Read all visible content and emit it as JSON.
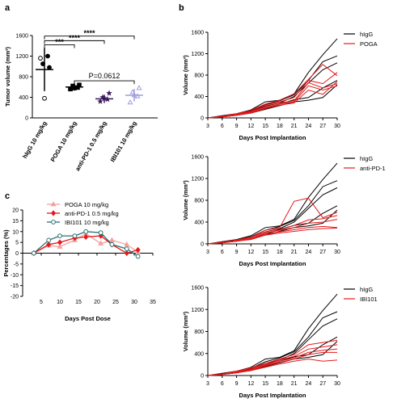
{
  "panel_labels": [
    "a",
    "b",
    "c"
  ],
  "colors": {
    "higg": "#000000",
    "treat": "#e31a1c",
    "poga_c": "#f4a0a0",
    "pd1_c": "#e31a1c",
    "ibi_c": "#2a7070",
    "g1": "#000000",
    "g2": "#000000",
    "g3": "#3a1a5a",
    "g4": "#9e9ee0"
  },
  "chart_data": [
    {
      "id": "a",
      "type": "scatter",
      "ylabel": "Tumor volume (mm³)",
      "ylim": [
        0,
        1600
      ],
      "yticks": [
        0,
        400,
        800,
        1200,
        1600
      ],
      "categories": [
        "hIgG 10 mg/kg",
        "POGA 10 mg/kg",
        "anti-PD-1 0.5 mg/kg",
        "IBI101 10 mg/kg"
      ],
      "groups": [
        {
          "name": "hIgG 10 mg/kg",
          "mean": 940,
          "sd": 420,
          "points": [
            1160,
            1200,
            1050,
            980,
            380
          ],
          "marker": "circle"
        },
        {
          "name": "POGA 10 mg/kg",
          "mean": 600,
          "sd": 70,
          "points": [
            560,
            590,
            620,
            640,
            580
          ],
          "marker": "square"
        },
        {
          "name": "anti-PD-1 0.5 mg/kg",
          "mean": 370,
          "sd": 80,
          "points": [
            320,
            360,
            400,
            480,
            380
          ],
          "marker": "star"
        },
        {
          "name": "IBI101 10 mg/kg",
          "mean": 440,
          "sd": 120,
          "points": [
            300,
            420,
            500,
            580,
            440
          ],
          "marker": "triangle"
        }
      ],
      "significance": [
        {
          "from": 0,
          "to": 1,
          "label": "***",
          "y": 1420
        },
        {
          "from": 0,
          "to": 2,
          "label": "****",
          "y": 1500
        },
        {
          "from": 0,
          "to": 3,
          "label": "****",
          "y": 1590
        },
        {
          "from": 1,
          "to": 3,
          "label": "P=0.0612",
          "y": 720
        }
      ]
    },
    {
      "id": "b1",
      "type": "line",
      "xlabel": "Days Post Implantation",
      "ylabel": "Volume (mm³)",
      "xticks": [
        3,
        6,
        9,
        12,
        15,
        18,
        21,
        24,
        27,
        30
      ],
      "ylim": [
        0,
        1600
      ],
      "yticks": [
        0,
        400,
        800,
        1200,
        1600
      ],
      "legend": [
        "hIgG",
        "POGA"
      ],
      "x": [
        3,
        6,
        9,
        12,
        15,
        18,
        21,
        24,
        27,
        30
      ],
      "series": [
        {
          "group": "hIgG",
          "values": [
            0,
            40,
            80,
            150,
            300,
            330,
            450,
            850,
            1180,
            1480
          ]
        },
        {
          "group": "hIgG",
          "values": [
            0,
            30,
            70,
            130,
            250,
            320,
            430,
            700,
            1050,
            1160
          ]
        },
        {
          "group": "hIgG",
          "values": [
            0,
            30,
            60,
            120,
            220,
            280,
            400,
            650,
            900,
            1030
          ]
        },
        {
          "group": "hIgG",
          "values": [
            0,
            20,
            50,
            100,
            180,
            260,
            340,
            380,
            560,
            700
          ]
        },
        {
          "group": "hIgG",
          "values": [
            0,
            20,
            50,
            90,
            160,
            230,
            300,
            330,
            380,
            620
          ]
        },
        {
          "group": "treat",
          "values": [
            0,
            30,
            80,
            140,
            260,
            330,
            450,
            720,
            1000,
            790
          ]
        },
        {
          "group": "treat",
          "values": [
            0,
            30,
            70,
            120,
            240,
            300,
            380,
            700,
            640,
            850
          ]
        },
        {
          "group": "treat",
          "values": [
            0,
            20,
            60,
            110,
            210,
            280,
            320,
            660,
            560,
            640
          ]
        },
        {
          "group": "treat",
          "values": [
            0,
            20,
            50,
            100,
            190,
            260,
            300,
            600,
            520,
            600
          ]
        },
        {
          "group": "treat",
          "values": [
            0,
            20,
            50,
            90,
            170,
            240,
            280,
            520,
            440,
            680
          ]
        }
      ]
    },
    {
      "id": "b2",
      "type": "line",
      "xlabel": "Days Post Implantation",
      "ylabel": "Volume (mm³)",
      "xticks": [
        3,
        6,
        9,
        12,
        15,
        18,
        21,
        24,
        27,
        30
      ],
      "ylim": [
        0,
        1600
      ],
      "yticks": [
        0,
        400,
        800,
        1200,
        1600
      ],
      "legend": [
        "hIgG",
        "anti-PD-1"
      ],
      "x": [
        3,
        6,
        9,
        12,
        15,
        18,
        21,
        24,
        27,
        30
      ],
      "series": [
        {
          "group": "hIgG",
          "values": [
            0,
            40,
            80,
            150,
            300,
            330,
            450,
            850,
            1180,
            1480
          ]
        },
        {
          "group": "hIgG",
          "values": [
            0,
            30,
            70,
            130,
            250,
            320,
            430,
            700,
            1050,
            1160
          ]
        },
        {
          "group": "hIgG",
          "values": [
            0,
            30,
            60,
            120,
            220,
            280,
            400,
            650,
            900,
            1030
          ]
        },
        {
          "group": "hIgG",
          "values": [
            0,
            20,
            50,
            100,
            180,
            260,
            340,
            380,
            560,
            700
          ]
        },
        {
          "group": "hIgG",
          "values": [
            0,
            20,
            50,
            90,
            160,
            230,
            300,
            330,
            380,
            620
          ]
        },
        {
          "group": "treat",
          "values": [
            0,
            30,
            70,
            120,
            250,
            300,
            780,
            840,
            480,
            580
          ]
        },
        {
          "group": "treat",
          "values": [
            0,
            30,
            70,
            120,
            220,
            270,
            340,
            440,
            460,
            520
          ]
        },
        {
          "group": "treat",
          "values": [
            0,
            20,
            60,
            100,
            200,
            250,
            300,
            380,
            400,
            450
          ]
        },
        {
          "group": "treat",
          "values": [
            0,
            20,
            50,
            90,
            180,
            220,
            260,
            300,
            320,
            300
          ]
        },
        {
          "group": "treat",
          "values": [
            0,
            20,
            50,
            80,
            160,
            200,
            230,
            260,
            280,
            290
          ]
        }
      ]
    },
    {
      "id": "b3",
      "type": "line",
      "xlabel": "Days Post Implantation",
      "ylabel": "Volume (mm³)",
      "xticks": [
        3,
        6,
        9,
        12,
        15,
        18,
        21,
        24,
        27,
        30
      ],
      "ylim": [
        0,
        1600
      ],
      "yticks": [
        0,
        400,
        800,
        1200,
        1600
      ],
      "legend": [
        "hIgG",
        "IBI101"
      ],
      "x": [
        3,
        6,
        9,
        12,
        15,
        18,
        21,
        24,
        27,
        30
      ],
      "series": [
        {
          "group": "hIgG",
          "values": [
            0,
            40,
            80,
            150,
            300,
            330,
            450,
            850,
            1180,
            1480
          ]
        },
        {
          "group": "hIgG",
          "values": [
            0,
            30,
            70,
            130,
            250,
            320,
            430,
            700,
            1050,
            1160
          ]
        },
        {
          "group": "hIgG",
          "values": [
            0,
            30,
            60,
            120,
            220,
            280,
            400,
            650,
            900,
            1030
          ]
        },
        {
          "group": "hIgG",
          "values": [
            0,
            20,
            50,
            100,
            180,
            260,
            340,
            380,
            560,
            700
          ]
        },
        {
          "group": "hIgG",
          "values": [
            0,
            20,
            50,
            90,
            160,
            230,
            300,
            330,
            380,
            620
          ]
        },
        {
          "group": "treat",
          "values": [
            0,
            30,
            80,
            140,
            220,
            300,
            380,
            560,
            600,
            640
          ]
        },
        {
          "group": "treat",
          "values": [
            0,
            30,
            70,
            130,
            200,
            280,
            350,
            480,
            520,
            560
          ]
        },
        {
          "group": "treat",
          "values": [
            0,
            20,
            60,
            110,
            190,
            260,
            320,
            420,
            460,
            480
          ]
        },
        {
          "group": "treat",
          "values": [
            0,
            20,
            50,
            100,
            170,
            240,
            300,
            380,
            420,
            420
          ]
        },
        {
          "group": "treat",
          "values": [
            0,
            20,
            50,
            90,
            150,
            210,
            260,
            300,
            260,
            280
          ]
        }
      ]
    },
    {
      "id": "c",
      "type": "line",
      "xlabel": "Days Post Dose",
      "ylabel": "Percentages (%)",
      "xlim": [
        0,
        35
      ],
      "xticks": [
        5,
        10,
        15,
        20,
        25,
        30,
        35
      ],
      "ylim": [
        -20,
        20
      ],
      "yticks": [
        -20,
        -15,
        -10,
        -5,
        0,
        5,
        10,
        15,
        20
      ],
      "legend": [
        "POGA 10 mg/kg",
        "anti-PD-1 0.5 mg/kg",
        "IBI101 10 mg/kg"
      ],
      "x": [
        3,
        7,
        10,
        14,
        17,
        21,
        24,
        28,
        31
      ],
      "series": [
        {
          "name": "POGA 10 mg/kg",
          "values": [
            0,
            3.5,
            3,
            6,
            9,
            4.5,
            6,
            4,
            0.5
          ],
          "marker": "triangle"
        },
        {
          "name": "anti-PD-1 0.5 mg/kg",
          "values": [
            0,
            4,
            5,
            7,
            7.5,
            8,
            4,
            0,
            1.5
          ],
          "marker": "diamond"
        },
        {
          "name": "IBI101 10 mg/kg",
          "values": [
            0,
            6,
            8,
            8,
            10,
            9.5,
            4,
            2,
            -1.5
          ],
          "marker": "circle"
        }
      ]
    }
  ]
}
